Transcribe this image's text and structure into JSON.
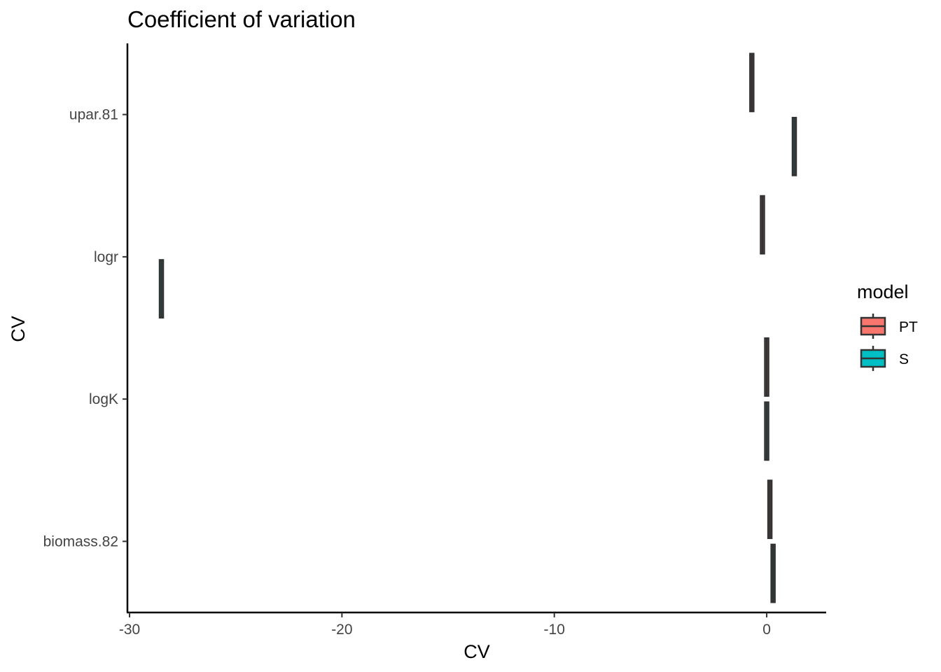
{
  "chart_data": {
    "type": "boxplot",
    "title": "Coefficient of variation",
    "xlabel": "CV",
    "ylabel": "CV",
    "xlim": [
      -30.1,
      2.8
    ],
    "x_ticks": [
      -30,
      -20,
      -10,
      0
    ],
    "x_tick_labels": [
      "-30",
      "-20",
      "-10",
      "0"
    ],
    "categories": [
      "biomass.82",
      "logK",
      "logr",
      "upar.81"
    ],
    "series": [
      {
        "name": "PT",
        "color": "#F8766D",
        "values": [
          0.15,
          0.0,
          -0.2,
          -0.7
        ]
      },
      {
        "name": "S",
        "color": "#00BFC4",
        "values": [
          0.3,
          0.0,
          -28.5,
          1.3
        ]
      }
    ],
    "legend": {
      "title": "model",
      "position": "right",
      "entries": [
        "PT",
        "S"
      ]
    },
    "grid": false
  }
}
